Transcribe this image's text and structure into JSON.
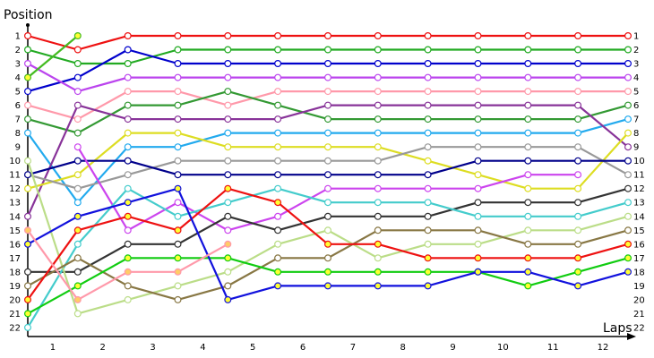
{
  "chart_data": {
    "type": "line",
    "title": "",
    "ylabel": "Position",
    "xlabel": "Laps",
    "x": [
      0,
      1,
      2,
      3,
      4,
      5,
      6,
      7,
      8,
      9,
      10,
      11,
      12
    ],
    "x_tick_labels": [
      "1",
      "2",
      "3",
      "4",
      "5",
      "6",
      "7",
      "8",
      "9",
      "10",
      "11",
      "12"
    ],
    "y_tick_labels": [
      "1",
      "2",
      "3",
      "4",
      "5",
      "6",
      "7",
      "8",
      "9",
      "10",
      "11",
      "12",
      "13",
      "14",
      "15",
      "16",
      "17",
      "18",
      "19",
      "20",
      "21",
      "22"
    ],
    "right_tick_labels": [
      "1",
      "2",
      "3",
      "4",
      "5",
      "6",
      "7",
      "8",
      "9",
      "10",
      "11",
      "12",
      "13",
      "14",
      "15",
      "16",
      "17",
      "18",
      "19",
      "20",
      "21",
      "22"
    ],
    "ylim": [
      1,
      22
    ],
    "y_inverted": true,
    "grid": false,
    "legend": "none",
    "series": [
      {
        "color": "#ee1111",
        "marker": "#ffffff",
        "values": [
          1,
          2,
          1,
          1,
          1,
          1,
          1,
          1,
          1,
          1,
          1,
          1,
          1
        ]
      },
      {
        "color": "#22aa22",
        "marker": "#ffffff",
        "values": [
          2,
          3,
          3,
          2,
          2,
          2,
          2,
          2,
          2,
          2,
          2,
          2,
          2
        ]
      },
      {
        "color": "#0000cc",
        "marker": "#ffffff",
        "values": [
          5,
          4,
          2,
          3,
          3,
          3,
          3,
          3,
          3,
          3,
          3,
          3,
          3
        ]
      },
      {
        "color": "#bb44ee",
        "marker": "#ffffff",
        "values": [
          3,
          5,
          4,
          4,
          4,
          4,
          4,
          4,
          4,
          4,
          4,
          4,
          4
        ]
      },
      {
        "color": "#ff99aa",
        "marker": "#ffffff",
        "values": [
          6,
          7,
          5,
          5,
          6,
          5,
          5,
          5,
          5,
          5,
          5,
          5,
          5
        ]
      },
      {
        "color": "#339933",
        "marker": "#ffffff",
        "values": [
          7,
          8,
          6,
          6,
          5,
          6,
          7,
          7,
          7,
          7,
          7,
          7,
          6
        ]
      },
      {
        "color": "#22aaee",
        "marker": "#ffffff",
        "values": [
          8,
          13,
          9,
          9,
          8,
          8,
          8,
          8,
          8,
          8,
          8,
          8,
          7
        ]
      },
      {
        "color": "#883399",
        "marker": "#ffffff",
        "values": [
          14,
          6,
          7,
          7,
          7,
          7,
          6,
          6,
          6,
          6,
          6,
          6,
          9
        ]
      },
      {
        "color": "#dddd22",
        "marker": "#ffffff",
        "values": [
          12,
          11,
          8,
          8,
          9,
          9,
          9,
          9,
          10,
          11,
          12,
          12,
          8
        ]
      },
      {
        "color": "#999999",
        "marker": "#ffffff",
        "values": [
          11,
          12,
          11,
          10,
          10,
          10,
          10,
          10,
          9,
          9,
          9,
          9,
          11
        ]
      },
      {
        "color": "#00008b",
        "marker": "#ffffff",
        "values": [
          11,
          10,
          10,
          11,
          11,
          11,
          11,
          11,
          11,
          10,
          10,
          10,
          10
        ]
      },
      {
        "color": "#cc44ee",
        "marker": "#ffffff",
        "values": [
          null,
          9,
          15,
          13,
          15,
          14,
          12,
          12,
          12,
          12,
          11,
          11,
          null
        ]
      },
      {
        "color": "#333333",
        "marker": "#ffffff",
        "values": [
          18,
          18,
          16,
          16,
          14,
          15,
          14,
          14,
          14,
          13,
          13,
          13,
          12
        ]
      },
      {
        "color": "#44cccc",
        "marker": "#ffffff",
        "values": [
          22,
          16,
          12,
          14,
          13,
          12,
          13,
          13,
          13,
          14,
          14,
          14,
          13
        ]
      },
      {
        "color": "#bbdd88",
        "marker": "#ffffff",
        "values": [
          10,
          21,
          20,
          19,
          18,
          16,
          15,
          17,
          16,
          16,
          15,
          15,
          14
        ]
      },
      {
        "color": "#887744",
        "marker": "#ffffff",
        "values": [
          19,
          17,
          19,
          20,
          19,
          17,
          17,
          15,
          15,
          15,
          16,
          16,
          15
        ]
      },
      {
        "color": "#ee1111",
        "marker": "#ffff33",
        "values": [
          20,
          15,
          14,
          15,
          12,
          13,
          16,
          16,
          17,
          17,
          17,
          17,
          16
        ]
      },
      {
        "color": "#11cc11",
        "marker": "#ffff33",
        "values": [
          21,
          19,
          17,
          17,
          17,
          18,
          18,
          18,
          18,
          18,
          19,
          18,
          17
        ]
      },
      {
        "color": "#1111dd",
        "marker": "#ffff33",
        "values": [
          16,
          14,
          13,
          12,
          20,
          19,
          19,
          19,
          19,
          18,
          18,
          19,
          18
        ]
      },
      {
        "color": "#ff99aa",
        "marker": "#ffcc66",
        "values": [
          15,
          20,
          18,
          18,
          16,
          null,
          null,
          null,
          null,
          null,
          null,
          null,
          null
        ]
      },
      {
        "color": "#44bb22",
        "marker": "#ffff33",
        "values": [
          4,
          1,
          null,
          null,
          null,
          null,
          null,
          null,
          null,
          null,
          null,
          null,
          null
        ]
      }
    ]
  }
}
